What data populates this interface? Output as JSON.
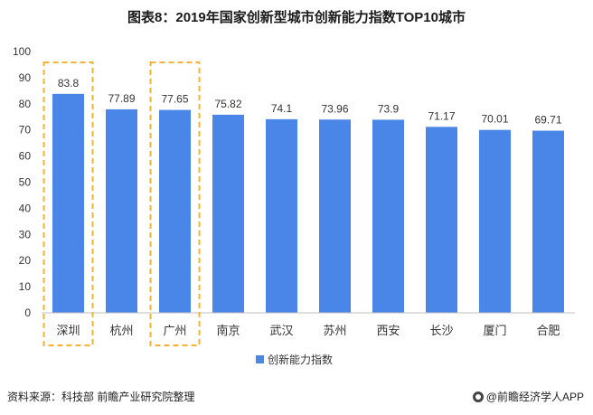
{
  "title": "图表8：2019年国家创新型城市创新能力指数TOP10城市",
  "source_text": "资料来源：科技部 前瞻产业研究院整理",
  "brand_text": "@前瞻经济学人APP",
  "colors": {
    "bar": "#4a86e8",
    "highlight_box": "#f5b335",
    "axis": "#bfbfbf",
    "text": "#333333"
  },
  "chart_data": {
    "type": "bar",
    "categories": [
      "深圳",
      "杭州",
      "广州",
      "南京",
      "武汉",
      "苏州",
      "西安",
      "长沙",
      "厦门",
      "合肥"
    ],
    "series": [
      {
        "name": "创新能力指数",
        "values": [
          83.8,
          77.89,
          77.65,
          75.82,
          74.1,
          73.96,
          73.9,
          71.17,
          70.01,
          69.71
        ]
      }
    ],
    "data_labels": [
      "83.8",
      "77.89",
      "77.65",
      "75.82",
      "74.1",
      "73.96",
      "73.9",
      "71.17",
      "70.01",
      "69.71"
    ],
    "ylim": [
      0,
      100
    ],
    "yticks": [
      0,
      10,
      20,
      30,
      40,
      50,
      60,
      70,
      80,
      90,
      100
    ],
    "highlighted_categories": [
      "深圳",
      "广州"
    ],
    "legend_position": "bottom",
    "grid": false
  }
}
